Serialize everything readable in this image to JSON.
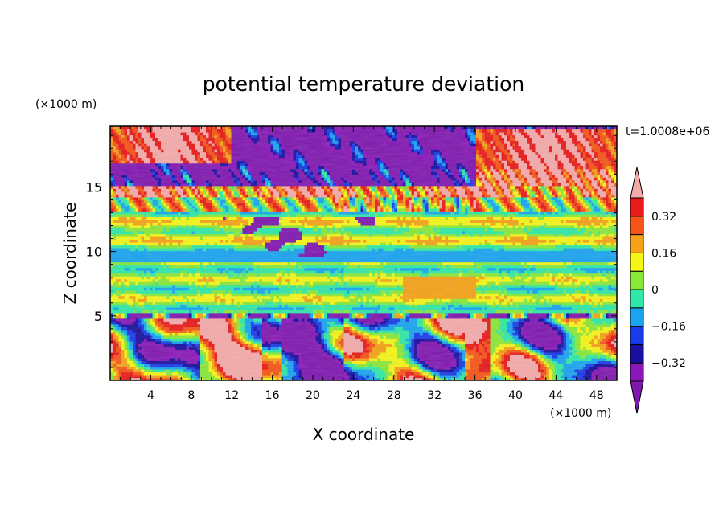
{
  "chart_data": {
    "type": "heatmap",
    "title": "potential temperature deviation",
    "xlabel": "X coordinate",
    "ylabel": "Z coordinate",
    "x_unit": "(×1000 m)",
    "y_unit": "(×1000 m)",
    "time_label": "t=1.0008e+06",
    "xlim": [
      0,
      50
    ],
    "ylim": [
      0,
      19.7
    ],
    "x_ticks": [
      4,
      8,
      12,
      16,
      20,
      24,
      28,
      32,
      36,
      40,
      44,
      48
    ],
    "x_tick_labels": [
      "4",
      "8",
      "12",
      "16",
      "20",
      "24",
      "28",
      "32",
      "36",
      "40",
      "44",
      "48"
    ],
    "y_ticks": [
      5,
      10,
      15
    ],
    "y_tick_labels": [
      "5",
      "10",
      "15"
    ],
    "colorbar": {
      "levels": [
        -0.4,
        -0.32,
        -0.24,
        -0.16,
        -0.08,
        0,
        0.08,
        0.16,
        0.24,
        0.32,
        0.4
      ],
      "tick_labels": [
        "0.32",
        "0.16",
        "0",
        "−0.16",
        "−0.32"
      ],
      "tick_values": [
        0.32,
        0.16,
        0,
        -0.16,
        -0.32
      ],
      "colors": [
        "#8a18b8",
        "#1a10a0",
        "#1a3ce8",
        "#1aa4f0",
        "#30e8a8",
        "#8ae83a",
        "#f5f518",
        "#f5a218",
        "#f55518",
        "#e81a1a"
      ],
      "over_color": "#f5aaaa",
      "under_color": "#8018b0"
    },
    "regions": [
      {
        "name": "upper-purple-layer",
        "z_range": [
          15,
          19.7
        ],
        "value": -0.4
      },
      {
        "name": "upper-pink-left",
        "x_range": [
          0,
          12
        ],
        "z_range": [
          17,
          19.7
        ],
        "value": 0.44
      },
      {
        "name": "upper-pink-right",
        "x_range": [
          36,
          50
        ],
        "z_range": [
          14,
          19.5
        ],
        "value": 0.44
      },
      {
        "name": "stable-band",
        "z_range": [
          5.2,
          14
        ],
        "value": 0.02
      },
      {
        "name": "boundary-layer",
        "z_range": [
          0,
          5.2
        ],
        "value": "mixed"
      }
    ]
  }
}
